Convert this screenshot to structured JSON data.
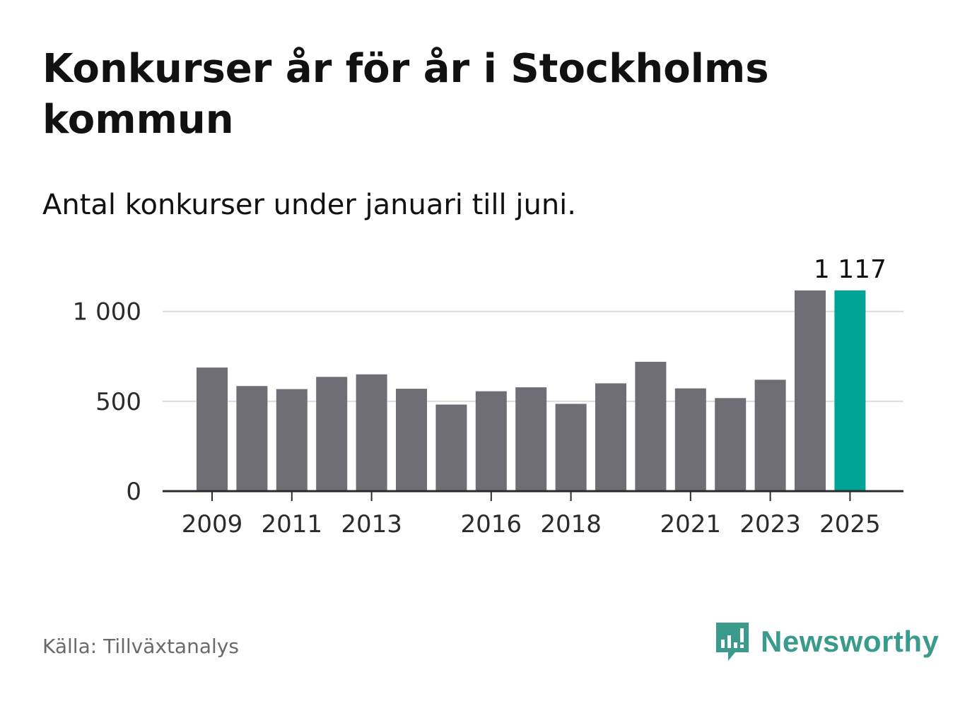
{
  "title": "Konkurser år för år i Stockholms kommun",
  "subtitle": "Antal konkurser under januari till juni.",
  "source": "Källa: Tillväxtanalys",
  "brand": {
    "name": "Newsworthy",
    "icon": "newsworthy-logo-icon",
    "color": "#3a9a8c"
  },
  "colors": {
    "bar": "#6f6e75",
    "highlight": "#00a497",
    "grid": "#dcdcdc",
    "axis": "#2b2b2b",
    "text": "#2b2b2b"
  },
  "chart_data": {
    "type": "bar",
    "title": "Konkurser år för år i Stockholms kommun",
    "subtitle": "Antal konkurser under januari till juni.",
    "xlabel": "",
    "ylabel": "",
    "categories": [
      "2009",
      "2010",
      "2011",
      "2012",
      "2013",
      "2014",
      "2015",
      "2016",
      "2017",
      "2018",
      "2019",
      "2020",
      "2021",
      "2022",
      "2023",
      "2024",
      "2025"
    ],
    "values": [
      688,
      585,
      568,
      636,
      650,
      570,
      482,
      556,
      578,
      486,
      600,
      720,
      572,
      518,
      620,
      1117,
      1117
    ],
    "highlight_index": 16,
    "data_labels": [
      {
        "category": "2025",
        "text": "1 117"
      }
    ],
    "yticks": [
      {
        "value": 0,
        "label": "0"
      },
      {
        "value": 500,
        "label": "500"
      },
      {
        "value": 1000,
        "label": "1 000"
      }
    ],
    "xticks": [
      "2009",
      "2011",
      "2013",
      "2016",
      "2018",
      "2021",
      "2023",
      "2025"
    ],
    "ylim": [
      0,
      1117
    ],
    "grid": true,
    "legend": "none"
  }
}
